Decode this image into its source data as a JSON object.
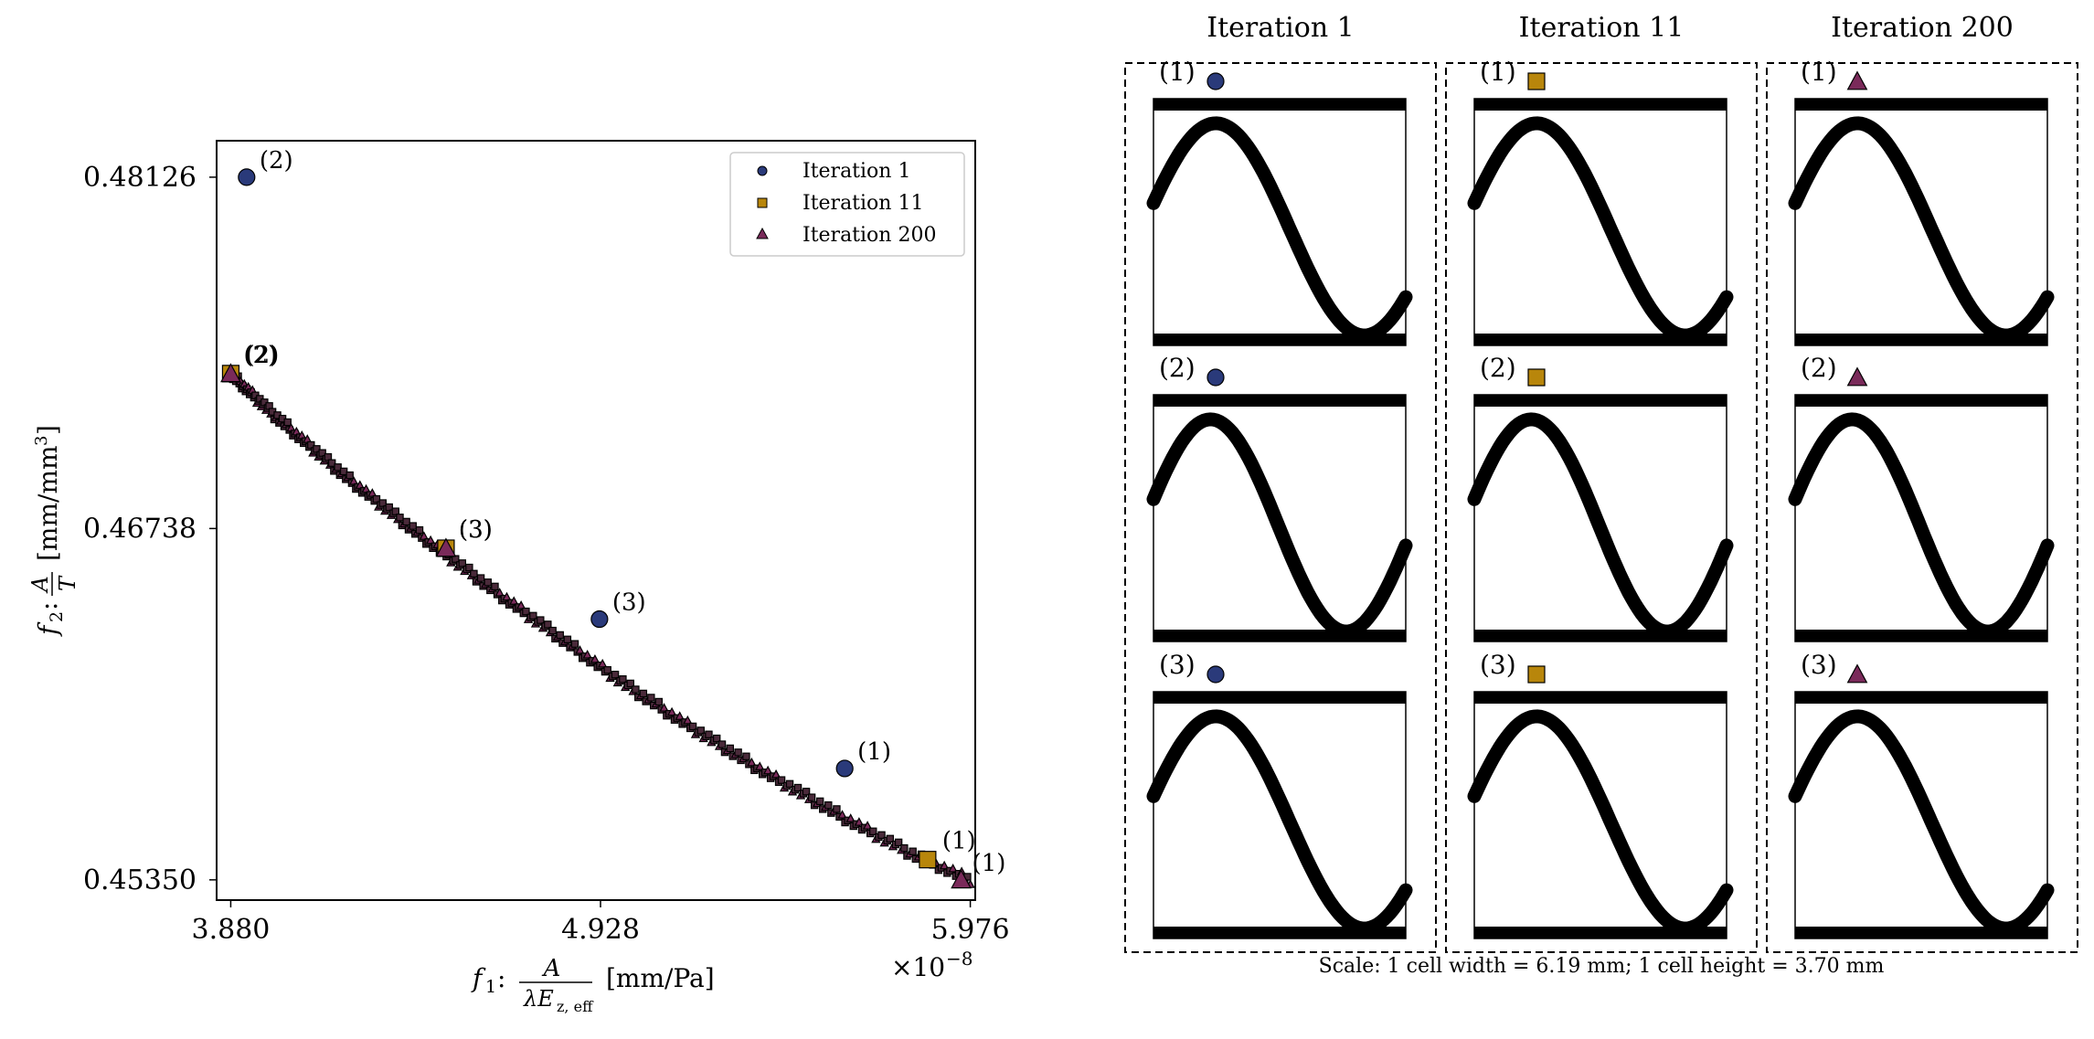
{
  "chart_data": [
    {
      "type": "scatter",
      "xlabel_prefix": "f",
      "xlabel_sub": "1",
      "xlabel_frac_num": "A",
      "xlabel_frac_den": "λE",
      "xlabel_frac_den_sub": "z, eff",
      "xlabel_units": "[mm/Pa]",
      "ylabel_prefix": "f",
      "ylabel_sub": "2",
      "ylabel_frac_num": "A",
      "ylabel_frac_den": "T",
      "ylabel_units": "[mm/mm",
      "ylabel_units_sup": "3",
      "ylabel_units_close": "]",
      "x_offset_text": "×10",
      "x_offset_exp": "−8",
      "xlim": [
        3.84,
        5.99
      ],
      "ylim": [
        0.4527,
        0.4827
      ],
      "xticks": [
        3.88,
        4.928,
        5.976
      ],
      "xtick_labels": [
        "3.880",
        "4.928",
        "5.976"
      ],
      "yticks": [
        0.4535,
        0.46738,
        0.48126
      ],
      "ytick_labels": [
        "0.45350",
        "0.46738",
        "0.48126"
      ],
      "legend": {
        "placement": "top-right",
        "entries": [
          "Iteration 1",
          "Iteration 11",
          "Iteration 200"
        ]
      },
      "series": [
        {
          "name": "Iteration 1",
          "marker": "circle",
          "color": "#2a3a7a",
          "points": [
            [
              5.62,
              0.4579
            ],
            [
              3.925,
              0.48126
            ],
            [
              4.925,
              0.4638
            ]
          ],
          "labels": [
            "(1)",
            "(2)",
            "(3)"
          ]
        },
        {
          "name": "Iteration 11",
          "marker": "square",
          "color": "#b8860b",
          "points": [
            [
              5.855,
              0.4543
            ],
            [
              3.88,
              0.4735
            ],
            [
              4.49,
              0.4666
            ]
          ],
          "labels": [
            "(1)",
            "(2)",
            "(3)"
          ]
        },
        {
          "name": "Iteration 200",
          "marker": "triangle",
          "color": "#7a2a5a",
          "points": [
            [
              5.95,
              0.4535
            ],
            [
              3.88,
              0.4735
            ],
            [
              4.49,
              0.4666
            ]
          ],
          "labels": [
            "(1)",
            "(2)",
            "(3)"
          ]
        }
      ],
      "pareto_front": {
        "x": [
          3.88,
          4.0,
          4.2,
          4.4,
          4.6,
          4.8,
          5.0,
          5.2,
          5.4,
          5.6,
          5.8,
          5.976
        ],
        "y": [
          0.4735,
          0.4719,
          0.4695,
          0.4673,
          0.4652,
          0.4632,
          0.4612,
          0.4594,
          0.4577,
          0.4561,
          0.4546,
          0.4535
        ]
      }
    }
  ],
  "grid": {
    "columns": [
      "Iteration 1",
      "Iteration 11",
      "Iteration 200"
    ],
    "row_labels": [
      "(1)",
      "(2)",
      "(3)"
    ],
    "markers": [
      "circle",
      "square",
      "triangle"
    ],
    "colors": [
      "#2a3a7a",
      "#b8860b",
      "#7a2a5a"
    ],
    "scale_text": "Scale: 1 cell width = 6.19 mm; 1 cell height = 3.70 mm"
  }
}
